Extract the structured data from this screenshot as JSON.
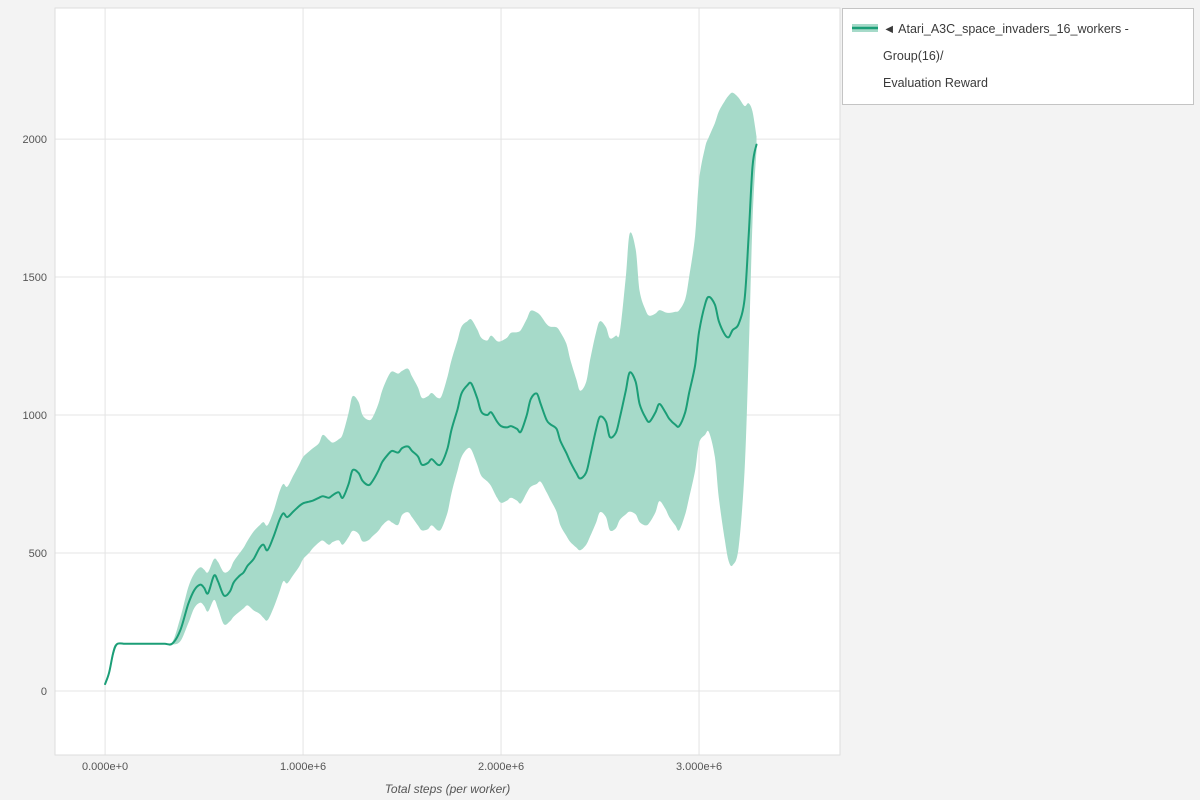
{
  "legend": {
    "toggle_glyph": "◄",
    "line1": "Atari_A3C_space_invaders_16_workers - Group(16)/",
    "line2": "Evaluation Reward"
  },
  "chart_data": {
    "type": "line",
    "title": "",
    "xlabel": "Total steps (per worker)",
    "ylabel": "",
    "x_unit": "millions of steps",
    "xlim": [
      -0.253,
      3.712
    ],
    "ylim": [
      -232,
      2475
    ],
    "grid": true,
    "legend_position": "top-right",
    "x_ticks": [
      {
        "v": 0,
        "label": "0.000e+0"
      },
      {
        "v": 1,
        "label": "1.000e+6"
      },
      {
        "v": 2,
        "label": "2.000e+6"
      },
      {
        "v": 3,
        "label": "3.000e+6"
      }
    ],
    "y_ticks": [
      {
        "v": 0,
        "label": "0"
      },
      {
        "v": 500,
        "label": "500"
      },
      {
        "v": 1000,
        "label": "1000"
      },
      {
        "v": 1500,
        "label": "1500"
      },
      {
        "v": 2000,
        "label": "2000"
      }
    ],
    "series": [
      {
        "name": "Atari_A3C_space_invaders_16_workers - Group(16)/Evaluation Reward",
        "colors": {
          "line": "#1b9e77",
          "band": "#a6dac9"
        },
        "point_format": "[x_in_1e6_steps, band_low, mean_reward, band_high]",
        "points": [
          [
            0.0,
            20,
            25,
            32
          ],
          [
            0.02,
            55,
            65,
            75
          ],
          [
            0.04,
            120,
            135,
            150
          ],
          [
            0.06,
            166,
            170,
            174
          ],
          [
            0.1,
            169,
            171,
            173
          ],
          [
            0.15,
            169,
            171,
            173
          ],
          [
            0.2,
            169,
            171,
            173
          ],
          [
            0.25,
            169,
            171,
            173
          ],
          [
            0.3,
            169,
            171,
            173
          ],
          [
            0.34,
            168,
            172,
            178
          ],
          [
            0.38,
            180,
            220,
            265
          ],
          [
            0.42,
            245,
            315,
            375
          ],
          [
            0.45,
            300,
            365,
            425
          ],
          [
            0.48,
            320,
            385,
            448
          ],
          [
            0.5,
            308,
            374,
            440
          ],
          [
            0.52,
            288,
            354,
            430
          ],
          [
            0.55,
            330,
            418,
            478
          ],
          [
            0.57,
            300,
            398,
            468
          ],
          [
            0.6,
            242,
            346,
            430
          ],
          [
            0.63,
            252,
            360,
            440
          ],
          [
            0.65,
            270,
            394,
            470
          ],
          [
            0.68,
            288,
            418,
            500
          ],
          [
            0.7,
            300,
            430,
            520
          ],
          [
            0.72,
            310,
            454,
            545
          ],
          [
            0.75,
            292,
            478,
            578
          ],
          [
            0.78,
            280,
            518,
            600
          ],
          [
            0.8,
            265,
            530,
            612
          ],
          [
            0.82,
            256,
            510,
            600
          ],
          [
            0.85,
            300,
            558,
            650
          ],
          [
            0.88,
            358,
            618,
            720
          ],
          [
            0.9,
            398,
            644,
            750
          ],
          [
            0.92,
            390,
            630,
            740
          ],
          [
            0.95,
            420,
            650,
            780
          ],
          [
            0.98,
            450,
            670,
            820
          ],
          [
            1.0,
            478,
            680,
            848
          ],
          [
            1.03,
            500,
            686,
            868
          ],
          [
            1.05,
            518,
            690,
            880
          ],
          [
            1.08,
            538,
            700,
            898
          ],
          [
            1.1,
            545,
            706,
            928
          ],
          [
            1.13,
            530,
            700,
            910
          ],
          [
            1.15,
            540,
            710,
            900
          ],
          [
            1.18,
            546,
            720,
            912
          ],
          [
            1.2,
            530,
            700,
            930
          ],
          [
            1.23,
            558,
            750,
            1008
          ],
          [
            1.25,
            580,
            800,
            1068
          ],
          [
            1.28,
            570,
            790,
            1048
          ],
          [
            1.3,
            542,
            762,
            1000
          ],
          [
            1.33,
            546,
            746,
            982
          ],
          [
            1.35,
            560,
            760,
            990
          ],
          [
            1.38,
            580,
            798,
            1040
          ],
          [
            1.4,
            600,
            830,
            1090
          ],
          [
            1.43,
            618,
            858,
            1140
          ],
          [
            1.45,
            610,
            870,
            1158
          ],
          [
            1.48,
            602,
            864,
            1150
          ],
          [
            1.5,
            638,
            880,
            1160
          ],
          [
            1.53,
            648,
            886,
            1168
          ],
          [
            1.55,
            630,
            870,
            1140
          ],
          [
            1.58,
            600,
            850,
            1100
          ],
          [
            1.6,
            582,
            820,
            1062
          ],
          [
            1.63,
            586,
            826,
            1068
          ],
          [
            1.65,
            600,
            840,
            1080
          ],
          [
            1.68,
            582,
            820,
            1062
          ],
          [
            1.7,
            590,
            826,
            1070
          ],
          [
            1.73,
            648,
            880,
            1140
          ],
          [
            1.75,
            718,
            948,
            1200
          ],
          [
            1.78,
            798,
            1020,
            1270
          ],
          [
            1.8,
            848,
            1078,
            1320
          ],
          [
            1.83,
            878,
            1108,
            1340
          ],
          [
            1.85,
            874,
            1114,
            1346
          ],
          [
            1.88,
            820,
            1060,
            1310
          ],
          [
            1.9,
            780,
            1012,
            1280
          ],
          [
            1.93,
            760,
            1000,
            1270
          ],
          [
            1.95,
            742,
            1010,
            1288
          ],
          [
            1.98,
            700,
            976,
            1268
          ],
          [
            2.0,
            682,
            960,
            1268
          ],
          [
            2.03,
            690,
            955,
            1280
          ],
          [
            2.05,
            700,
            960,
            1298
          ],
          [
            2.08,
            690,
            950,
            1300
          ],
          [
            2.1,
            680,
            940,
            1308
          ],
          [
            2.13,
            718,
            1000,
            1348
          ],
          [
            2.15,
            740,
            1058,
            1378
          ],
          [
            2.18,
            750,
            1078,
            1372
          ],
          [
            2.2,
            758,
            1040,
            1360
          ],
          [
            2.23,
            720,
            982,
            1330
          ],
          [
            2.25,
            692,
            966,
            1320
          ],
          [
            2.28,
            650,
            950,
            1318
          ],
          [
            2.3,
            600,
            906,
            1300
          ],
          [
            2.33,
            562,
            862,
            1258
          ],
          [
            2.35,
            540,
            830,
            1200
          ],
          [
            2.38,
            520,
            790,
            1130
          ],
          [
            2.4,
            510,
            770,
            1088
          ],
          [
            2.43,
            530,
            792,
            1120
          ],
          [
            2.45,
            560,
            850,
            1200
          ],
          [
            2.48,
            610,
            948,
            1300
          ],
          [
            2.5,
            648,
            994,
            1340
          ],
          [
            2.53,
            630,
            976,
            1318
          ],
          [
            2.55,
            582,
            920,
            1278
          ],
          [
            2.58,
            590,
            936,
            1288
          ],
          [
            2.6,
            620,
            990,
            1300
          ],
          [
            2.63,
            640,
            1088,
            1500
          ],
          [
            2.65,
            650,
            1154,
            1658
          ],
          [
            2.68,
            640,
            1120,
            1600
          ],
          [
            2.7,
            612,
            1040,
            1450
          ],
          [
            2.73,
            600,
            990,
            1380
          ],
          [
            2.75,
            610,
            976,
            1360
          ],
          [
            2.78,
            648,
            1010,
            1368
          ],
          [
            2.8,
            688,
            1040,
            1380
          ],
          [
            2.83,
            660,
            1010,
            1372
          ],
          [
            2.85,
            630,
            986,
            1370
          ],
          [
            2.88,
            600,
            965,
            1374
          ],
          [
            2.9,
            582,
            960,
            1380
          ],
          [
            2.93,
            640,
            1010,
            1420
          ],
          [
            2.95,
            700,
            1080,
            1500
          ],
          [
            2.98,
            798,
            1180,
            1650
          ],
          [
            3.0,
            898,
            1300,
            1850
          ],
          [
            3.03,
            928,
            1400,
            1968
          ],
          [
            3.05,
            938,
            1428,
            2008
          ],
          [
            3.08,
            848,
            1400,
            2058
          ],
          [
            3.1,
            700,
            1340,
            2100
          ],
          [
            3.13,
            548,
            1292,
            2138
          ],
          [
            3.15,
            470,
            1282,
            2158
          ],
          [
            3.17,
            456,
            1308,
            2168
          ],
          [
            3.2,
            520,
            1330,
            2150
          ],
          [
            3.23,
            800,
            1420,
            2120
          ],
          [
            3.25,
            1200,
            1640,
            2130
          ],
          [
            3.27,
            1700,
            1900,
            2100
          ],
          [
            3.29,
            1960,
            1980,
            2010
          ]
        ]
      }
    ]
  }
}
